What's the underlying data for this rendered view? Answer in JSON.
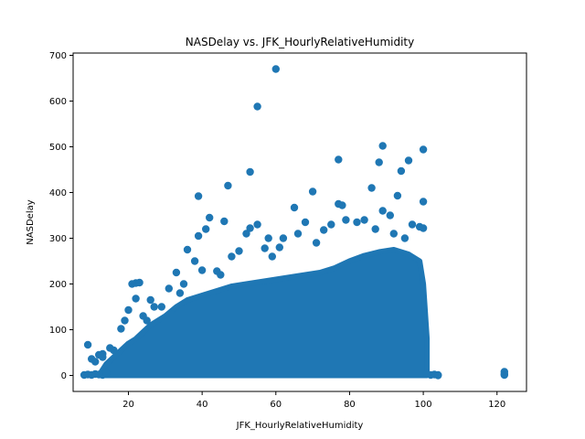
{
  "chart_data": {
    "type": "scatter",
    "title": "NASDelay vs. JFK_HourlyRelativeHumidity",
    "xlabel": "JFK_HourlyRelativeHumidity",
    "ylabel": "NASDelay",
    "xlim": [
      5,
      128
    ],
    "ylim": [
      -35,
      705
    ],
    "xticks": [
      20,
      40,
      60,
      80,
      100,
      120
    ],
    "yticks": [
      0,
      100,
      200,
      300,
      400,
      500,
      600,
      700
    ],
    "grid": false,
    "marker_color": "#1f77b4",
    "series": [
      {
        "points": [
          [
            60,
            670
          ],
          [
            55,
            588
          ],
          [
            89,
            502
          ],
          [
            100,
            494
          ],
          [
            96,
            470
          ],
          [
            77,
            472
          ],
          [
            88,
            466
          ],
          [
            94,
            447
          ],
          [
            53,
            445
          ],
          [
            47,
            415
          ],
          [
            86,
            410
          ],
          [
            39,
            392
          ],
          [
            70,
            402
          ],
          [
            93,
            393
          ],
          [
            77,
            375
          ],
          [
            78,
            372
          ],
          [
            65,
            367
          ],
          [
            79,
            340
          ],
          [
            89,
            360
          ],
          [
            42,
            345
          ],
          [
            46,
            337
          ],
          [
            55,
            330
          ],
          [
            68,
            335
          ],
          [
            73,
            318
          ],
          [
            82,
            335
          ],
          [
            99,
            325
          ],
          [
            53,
            322
          ],
          [
            41,
            320
          ],
          [
            36,
            275
          ],
          [
            39,
            305
          ],
          [
            50,
            272
          ],
          [
            59,
            260
          ],
          [
            57,
            278
          ],
          [
            22,
            202
          ],
          [
            23,
            203
          ],
          [
            21,
            200
          ],
          [
            33,
            225
          ],
          [
            38,
            250
          ],
          [
            44,
            228
          ],
          [
            26,
            165
          ],
          [
            22,
            168
          ],
          [
            20,
            143
          ],
          [
            19,
            120
          ],
          [
            18,
            102
          ],
          [
            15,
            60
          ],
          [
            13,
            47
          ],
          [
            12,
            45
          ],
          [
            9,
            67
          ],
          [
            10,
            36
          ],
          [
            11,
            30
          ],
          [
            13,
            40
          ],
          [
            16,
            55
          ],
          [
            25,
            120
          ],
          [
            29,
            150
          ],
          [
            31,
            190
          ],
          [
            35,
            200
          ],
          [
            40,
            230
          ],
          [
            48,
            260
          ],
          [
            62,
            300
          ],
          [
            66,
            310
          ],
          [
            75,
            330
          ],
          [
            84,
            340
          ],
          [
            91,
            350
          ],
          [
            97,
            330
          ],
          [
            100,
            380
          ],
          [
            100,
            322
          ],
          [
            95,
            300
          ],
          [
            92,
            310
          ],
          [
            87,
            320
          ],
          [
            71,
            290
          ],
          [
            61,
            280
          ],
          [
            58,
            300
          ],
          [
            52,
            310
          ],
          [
            45,
            220
          ],
          [
            34,
            180
          ],
          [
            27,
            150
          ],
          [
            24,
            130
          ],
          [
            8,
            1
          ],
          [
            9,
            2
          ],
          [
            10,
            1
          ],
          [
            11,
            3
          ],
          [
            12,
            2
          ],
          [
            13,
            1
          ],
          [
            14,
            5
          ],
          [
            102,
            1
          ],
          [
            103,
            2
          ],
          [
            104,
            1
          ],
          [
            101,
            3
          ],
          [
            104,
            0
          ],
          [
            122,
            8
          ],
          [
            122,
            1
          ],
          [
            122,
            3
          ]
        ]
      }
    ],
    "dense_band": [
      [
        12,
        0
      ],
      [
        14,
        25
      ],
      [
        16,
        40
      ],
      [
        18,
        55
      ],
      [
        20,
        70
      ],
      [
        22,
        80
      ],
      [
        24,
        95
      ],
      [
        26,
        110
      ],
      [
        28,
        120
      ],
      [
        30,
        130
      ],
      [
        33,
        150
      ],
      [
        36,
        165
      ],
      [
        40,
        175
      ],
      [
        44,
        185
      ],
      [
        48,
        195
      ],
      [
        52,
        200
      ],
      [
        56,
        205
      ],
      [
        60,
        210
      ],
      [
        64,
        215
      ],
      [
        68,
        220
      ],
      [
        72,
        225
      ],
      [
        76,
        235
      ],
      [
        80,
        250
      ],
      [
        84,
        262
      ],
      [
        88,
        270
      ],
      [
        92,
        275
      ],
      [
        96,
        265
      ],
      [
        99,
        250
      ],
      [
        100,
        200
      ],
      [
        101,
        80
      ],
      [
        101,
        0
      ]
    ]
  }
}
